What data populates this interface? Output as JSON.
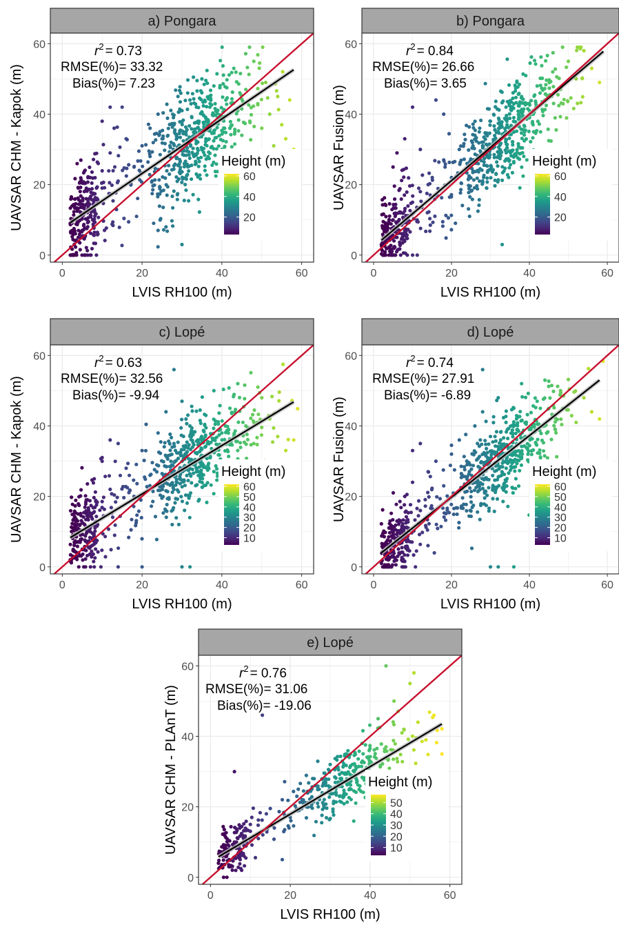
{
  "chart_data": [
    {
      "type": "scatter",
      "strip_title": "a) Pongara",
      "xlabel": "LVIS RH100 (m)",
      "ylabel": "UAVSAR CHM -  Kapok (m)",
      "xlim": [
        -3,
        63
      ],
      "ylim": [
        -2,
        63
      ],
      "xticks": [
        0,
        20,
        40,
        60
      ],
      "yticks": [
        0,
        20,
        40,
        60
      ],
      "grid": true,
      "stats": {
        "r2_label": "r",
        "r2_value": "= 0.73",
        "rmse": "RMSE(%)= 33.32",
        "bias": "Bias(%)= 7.23"
      },
      "legend": {
        "title": "Height (m)",
        "ticks": [
          20,
          40,
          60
        ],
        "range": [
          3,
          62
        ],
        "placement": "right-center"
      },
      "fit_line": {
        "x": [
          2,
          58
        ],
        "y": [
          9.2,
          52.6
        ]
      },
      "reference_line": {
        "x": [
          -3,
          63
        ],
        "y": [
          -3,
          63
        ],
        "color": "#c8102e"
      },
      "points": [
        [
          2,
          9
        ],
        [
          3,
          14
        ],
        [
          4,
          19
        ],
        [
          5,
          7
        ],
        [
          3,
          3
        ],
        [
          6,
          16
        ],
        [
          7,
          22
        ],
        [
          5,
          11
        ],
        [
          4,
          5
        ],
        [
          8,
          13
        ],
        [
          9,
          26
        ],
        [
          10,
          19
        ],
        [
          12,
          29
        ],
        [
          14,
          21
        ],
        [
          16,
          33
        ],
        [
          13,
          36
        ],
        [
          15,
          42
        ],
        [
          18,
          25
        ],
        [
          20,
          31
        ],
        [
          22,
          28
        ],
        [
          22,
          36
        ],
        [
          24,
          40
        ],
        [
          25,
          33
        ],
        [
          27,
          31
        ],
        [
          28,
          37
        ],
        [
          30,
          41
        ],
        [
          29,
          45
        ],
        [
          31,
          35
        ],
        [
          32,
          44
        ],
        [
          33,
          28
        ],
        [
          34,
          38
        ],
        [
          35,
          50
        ],
        [
          36,
          33
        ],
        [
          37,
          42
        ],
        [
          38,
          48
        ],
        [
          39,
          39
        ],
        [
          40,
          30
        ],
        [
          41,
          44
        ],
        [
          42,
          36
        ],
        [
          43,
          53
        ],
        [
          44,
          41
        ],
        [
          45,
          34
        ],
        [
          46,
          47
        ],
        [
          47,
          38
        ],
        [
          48,
          55
        ],
        [
          49,
          43
        ],
        [
          50,
          36
        ],
        [
          51,
          49
        ],
        [
          52,
          40
        ],
        [
          53,
          31
        ],
        [
          54,
          45
        ],
        [
          55,
          37
        ],
        [
          56,
          33
        ],
        [
          57,
          44
        ],
        [
          58,
          30
        ],
        [
          30,
          3
        ],
        [
          26,
          8
        ],
        [
          24,
          7
        ],
        [
          10,
          38
        ],
        [
          12,
          42
        ]
      ],
      "point_cloud": {
        "count": 720,
        "x_range": [
          2,
          59
        ],
        "y_scatter": 8
      }
    },
    {
      "type": "scatter",
      "strip_title": "b) Pongara",
      "xlabel": "LVIS RH100 (m)",
      "ylabel": "UAVSAR Fusion (m)",
      "xlim": [
        -3,
        63
      ],
      "ylim": [
        -2,
        63
      ],
      "xticks": [
        0,
        20,
        40,
        60
      ],
      "yticks": [
        0,
        20,
        40,
        60
      ],
      "grid": true,
      "stats": {
        "r2_label": "r",
        "r2_value": "= 0.84",
        "rmse": "RMSE(%)= 26.66",
        "bias": "Bias(%)= 3.65"
      },
      "legend": {
        "title": "Height (m)",
        "ticks": [
          20,
          40,
          60
        ],
        "range": [
          3,
          62
        ],
        "placement": "right-center"
      },
      "fit_line": {
        "x": [
          2,
          59
        ],
        "y": [
          4.2,
          57.8
        ]
      },
      "reference_line": {
        "x": [
          -3,
          63
        ],
        "y": [
          -3,
          63
        ],
        "color": "#c8102e"
      },
      "points": [
        [
          2,
          3
        ],
        [
          3,
          8
        ],
        [
          4,
          2
        ],
        [
          5,
          10
        ],
        [
          6,
          5
        ],
        [
          7,
          12
        ],
        [
          8,
          7
        ],
        [
          10,
          15
        ],
        [
          12,
          18
        ],
        [
          14,
          20
        ],
        [
          16,
          17
        ],
        [
          18,
          27
        ],
        [
          20,
          22
        ],
        [
          22,
          30
        ],
        [
          24,
          26
        ],
        [
          26,
          34
        ],
        [
          28,
          31
        ],
        [
          30,
          38
        ],
        [
          32,
          35
        ],
        [
          34,
          42
        ],
        [
          36,
          39
        ],
        [
          38,
          45
        ],
        [
          40,
          41
        ],
        [
          42,
          48
        ],
        [
          44,
          44
        ],
        [
          46,
          52
        ],
        [
          48,
          47
        ],
        [
          50,
          55
        ],
        [
          52,
          50
        ],
        [
          54,
          58
        ],
        [
          56,
          53
        ],
        [
          58,
          49
        ],
        [
          8,
          33
        ],
        [
          10,
          42
        ],
        [
          12,
          30
        ],
        [
          16,
          44
        ],
        [
          18,
          40
        ],
        [
          33,
          3
        ],
        [
          5,
          25
        ],
        [
          6,
          29
        ]
      ],
      "point_cloud": {
        "count": 720,
        "x_range": [
          2,
          59
        ],
        "y_scatter": 6.5
      }
    },
    {
      "type": "scatter",
      "strip_title": "c) Lopé",
      "xlabel": "LVIS RH100 (m)",
      "ylabel": "UAVSAR CHM -  Kapok (m)",
      "xlim": [
        -3,
        63
      ],
      "ylim": [
        -2,
        63
      ],
      "xticks": [
        0,
        20,
        40,
        60
      ],
      "yticks": [
        0,
        20,
        40,
        60
      ],
      "grid": true,
      "stats": {
        "r2_label": "r",
        "r2_value": "= 0.63",
        "rmse": "RMSE(%)= 32.56",
        "bias": "Bias(%)= -9.94"
      },
      "legend": {
        "title": "Height (m)",
        "ticks": [
          10,
          20,
          30,
          40,
          50,
          60
        ],
        "range": [
          3,
          62
        ],
        "placement": "right-center"
      },
      "fit_line": {
        "x": [
          2,
          58
        ],
        "y": [
          8.3,
          46.8
        ]
      },
      "reference_line": {
        "x": [
          -3,
          63
        ],
        "y": [
          -3,
          63
        ],
        "color": "#c8102e"
      },
      "points": [
        [
          2,
          2
        ],
        [
          3,
          9
        ],
        [
          4,
          15
        ],
        [
          5,
          5
        ],
        [
          6,
          19
        ],
        [
          7,
          11
        ],
        [
          8,
          25
        ],
        [
          10,
          30
        ],
        [
          12,
          22
        ],
        [
          14,
          35
        ],
        [
          16,
          28
        ],
        [
          18,
          20
        ],
        [
          20,
          33
        ],
        [
          22,
          26
        ],
        [
          24,
          38
        ],
        [
          26,
          44
        ],
        [
          28,
          35
        ],
        [
          30,
          47
        ],
        [
          32,
          40
        ],
        [
          34,
          36
        ],
        [
          36,
          43
        ],
        [
          38,
          50
        ],
        [
          40,
          38
        ],
        [
          42,
          45
        ],
        [
          44,
          52
        ],
        [
          46,
          40
        ],
        [
          48,
          35
        ],
        [
          50,
          48
        ],
        [
          52,
          42
        ],
        [
          54,
          37
        ],
        [
          56,
          33
        ],
        [
          58,
          36
        ],
        [
          14,
          0
        ],
        [
          20,
          0
        ],
        [
          30,
          0
        ],
        [
          32,
          0
        ],
        [
          8,
          0
        ],
        [
          10,
          31
        ],
        [
          12,
          36
        ],
        [
          28,
          56
        ]
      ],
      "point_cloud": {
        "count": 700,
        "x_range": [
          2,
          59
        ],
        "y_scatter": 7
      }
    },
    {
      "type": "scatter",
      "strip_title": "d) Lopé",
      "xlabel": "LVIS RH100 (m)",
      "ylabel": "UAVSAR Fusion (m)",
      "xlim": [
        -3,
        63
      ],
      "ylim": [
        -2,
        63
      ],
      "xticks": [
        0,
        20,
        40,
        60
      ],
      "yticks": [
        0,
        20,
        40,
        60
      ],
      "grid": true,
      "stats": {
        "r2_label": "r",
        "r2_value": "= 0.74",
        "rmse": "RMSE(%)= 27.91",
        "bias": "Bias(%)= -6.89"
      },
      "legend": {
        "title": "Height (m)",
        "ticks": [
          10,
          20,
          30,
          40,
          50,
          60
        ],
        "range": [
          3,
          62
        ],
        "placement": "right-center"
      },
      "fit_line": {
        "x": [
          2,
          58
        ],
        "y": [
          4.0,
          53.0
        ]
      },
      "reference_line": {
        "x": [
          -3,
          63
        ],
        "y": [
          -3,
          63
        ],
        "color": "#c8102e"
      },
      "points": [
        [
          2,
          1
        ],
        [
          3,
          6
        ],
        [
          4,
          11
        ],
        [
          5,
          3
        ],
        [
          6,
          13
        ],
        [
          7,
          8
        ],
        [
          8,
          20
        ],
        [
          10,
          24
        ],
        [
          12,
          16
        ],
        [
          14,
          27
        ],
        [
          16,
          30
        ],
        [
          18,
          23
        ],
        [
          20,
          32
        ],
        [
          22,
          36
        ],
        [
          24,
          29
        ],
        [
          26,
          40
        ],
        [
          28,
          44
        ],
        [
          30,
          37
        ],
        [
          32,
          48
        ],
        [
          34,
          41
        ],
        [
          36,
          45
        ],
        [
          38,
          52
        ],
        [
          40,
          39
        ],
        [
          42,
          47
        ],
        [
          44,
          53
        ],
        [
          46,
          43
        ],
        [
          48,
          50
        ],
        [
          50,
          46
        ],
        [
          52,
          41
        ],
        [
          54,
          48
        ],
        [
          56,
          44
        ],
        [
          58,
          42
        ],
        [
          30,
          0
        ],
        [
          32,
          0
        ],
        [
          36,
          0
        ],
        [
          10,
          33
        ],
        [
          12,
          35
        ],
        [
          28,
          56
        ]
      ],
      "point_cloud": {
        "count": 700,
        "x_range": [
          2,
          59
        ],
        "y_scatter": 6
      }
    },
    {
      "type": "scatter",
      "strip_title": "e) Lopé",
      "xlabel": "LVIS RH100 (m)",
      "ylabel": "UAVSAR CHM - PLAnT (m)",
      "xlim": [
        -3,
        63
      ],
      "ylim": [
        -2,
        63
      ],
      "xticks": [
        0,
        20,
        40,
        60
      ],
      "yticks": [
        0,
        20,
        40,
        60
      ],
      "grid": true,
      "stats": {
        "r2_label": "r",
        "r2_value": "= 0.76",
        "rmse": "RMSE(%)= 31.06",
        "bias": "Bias(%)= -19.06"
      },
      "legend": {
        "title": "Height (m)",
        "ticks": [
          10,
          20,
          30,
          40,
          50
        ],
        "range": [
          3,
          57
        ],
        "placement": "right-center"
      },
      "fit_line": {
        "x": [
          2,
          58
        ],
        "y": [
          5.8,
          43.5
        ]
      },
      "reference_line": {
        "x": [
          -3,
          63
        ],
        "y": [
          -3,
          63
        ],
        "color": "#c8102e"
      },
      "points": [
        [
          2,
          4
        ],
        [
          3,
          6
        ],
        [
          4,
          8
        ],
        [
          5,
          3
        ],
        [
          6,
          10
        ],
        [
          7,
          7
        ],
        [
          8,
          12
        ],
        [
          10,
          15
        ],
        [
          12,
          11
        ],
        [
          14,
          18
        ],
        [
          16,
          14
        ],
        [
          18,
          22
        ],
        [
          20,
          17
        ],
        [
          22,
          25
        ],
        [
          24,
          20
        ],
        [
          26,
          28
        ],
        [
          28,
          24
        ],
        [
          30,
          32
        ],
        [
          32,
          27
        ],
        [
          34,
          35
        ],
        [
          36,
          30
        ],
        [
          38,
          38
        ],
        [
          40,
          33
        ],
        [
          42,
          45
        ],
        [
          44,
          37
        ],
        [
          46,
          50
        ],
        [
          48,
          41
        ],
        [
          50,
          55
        ],
        [
          52,
          44
        ],
        [
          54,
          39
        ],
        [
          56,
          46
        ],
        [
          58,
          35
        ],
        [
          13,
          46
        ],
        [
          6,
          30
        ],
        [
          44,
          60
        ],
        [
          51,
          58
        ],
        [
          18,
          5
        ]
      ],
      "point_cloud": {
        "count": 430,
        "x_range": [
          2,
          58
        ],
        "y_scatter": 4.5
      }
    }
  ]
}
